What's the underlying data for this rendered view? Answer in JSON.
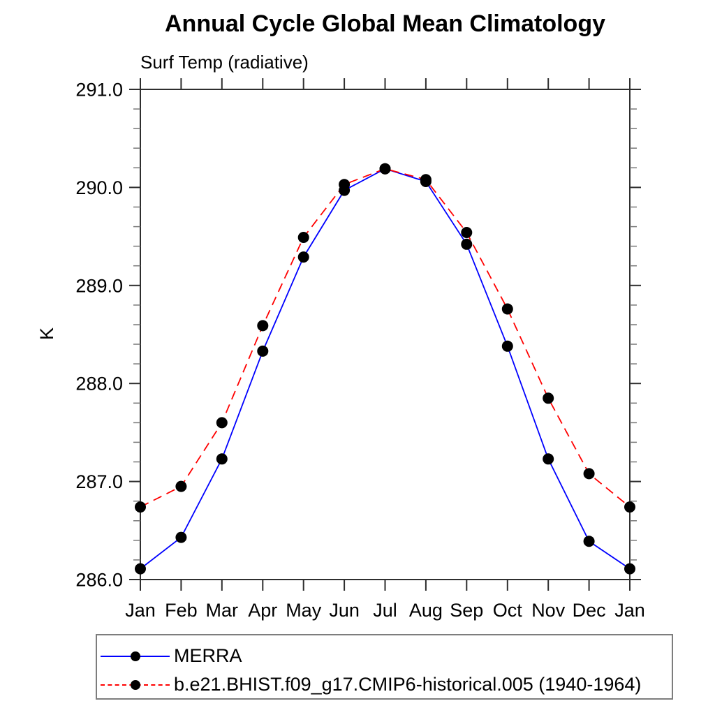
{
  "page": {
    "background": "#ffffff"
  },
  "chart_data": {
    "type": "line",
    "title": "Annual Cycle Global Mean Climatology",
    "subtitle": "Surf Temp (radiative)",
    "ylabel": "K",
    "categories": [
      "Jan",
      "Feb",
      "Mar",
      "Apr",
      "May",
      "Jun",
      "Jul",
      "Aug",
      "Sep",
      "Oct",
      "Nov",
      "Dec",
      "Jan"
    ],
    "ylim": [
      286.0,
      291.0
    ],
    "ytick_step": 1.0,
    "yminor_step": 0.2,
    "ytick_labels": [
      "286.0",
      "287.0",
      "288.0",
      "289.0",
      "290.0",
      "291.0"
    ],
    "grid": false,
    "legend_position": "bottom-left",
    "axis_color": "#2e2e2e",
    "minor_tick_color": "#777777",
    "marker_color": "#000000",
    "series": [
      {
        "name": "MERRA",
        "color": "#0000ff",
        "style": "solid",
        "marker": "circle",
        "values": [
          286.11,
          286.43,
          287.23,
          288.33,
          289.29,
          289.97,
          290.19,
          290.06,
          289.42,
          288.38,
          287.23,
          286.39,
          286.11
        ]
      },
      {
        "name": "b.e21.BHIST.f09_g17.CMIP6-historical.005 (1940-1964)",
        "color": "#ff0000",
        "style": "dashed",
        "marker": "circle",
        "values": [
          286.74,
          286.95,
          287.6,
          288.59,
          289.49,
          290.03,
          290.19,
          290.08,
          289.54,
          288.76,
          287.85,
          287.08,
          286.74
        ]
      }
    ]
  }
}
